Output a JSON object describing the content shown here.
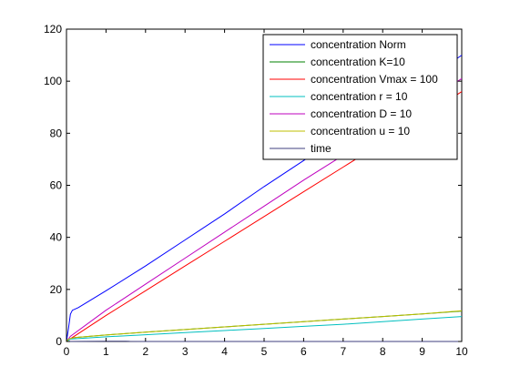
{
  "chart_data": {
    "type": "line",
    "title": "",
    "xlabel": "",
    "ylabel": "",
    "xlim": [
      0,
      10
    ],
    "ylim": [
      0,
      120
    ],
    "x_ticks": [
      0,
      1,
      2,
      3,
      4,
      5,
      6,
      7,
      8,
      9,
      10
    ],
    "y_ticks": [
      0,
      20,
      40,
      60,
      80,
      100,
      120
    ],
    "grid": false,
    "legend_position": "top-right",
    "series": [
      {
        "name": "concentration Norm",
        "color": "#0000ff",
        "x": [
          0,
          0.05,
          0.1,
          0.15,
          0.3,
          1,
          2,
          3,
          4,
          5,
          6,
          7,
          8,
          9,
          10
        ],
        "y": [
          0,
          5,
          10.5,
          12,
          13,
          19.5,
          29,
          39,
          49,
          59.5,
          69.5,
          79.5,
          89.5,
          99.5,
          110
        ]
      },
      {
        "name": "concentration K=10",
        "color": "#008000",
        "x": [
          0,
          0.05,
          0.2,
          1,
          2,
          3,
          4,
          5,
          6,
          7,
          8,
          9,
          10
        ],
        "y": [
          0,
          0.8,
          1.5,
          2.5,
          3.6,
          4.6,
          5.6,
          6.6,
          7.6,
          8.6,
          9.6,
          10.6,
          11.7
        ]
      },
      {
        "name": "concentration Vmax = 100",
        "color": "#ff0000",
        "x": [
          0,
          0.1,
          1,
          2,
          3,
          4,
          5,
          6,
          7,
          8,
          9,
          10
        ],
        "y": [
          0,
          1,
          10,
          19.5,
          29,
          38.5,
          48,
          57.5,
          67,
          76.5,
          86,
          96
        ]
      },
      {
        "name": "concentration r = 10",
        "color": "#00bfbf",
        "x": [
          0,
          0.1,
          1,
          2,
          3,
          4,
          5,
          6,
          7,
          8,
          9,
          10
        ],
        "y": [
          0,
          0.9,
          1.8,
          2.6,
          3.4,
          4.2,
          5,
          5.8,
          6.6,
          7.6,
          8.6,
          9.6
        ]
      },
      {
        "name": "concentration D = 10",
        "color": "#bf00bf",
        "x": [
          0,
          0.1,
          1,
          2,
          3,
          4,
          5,
          6,
          7,
          8,
          9,
          10
        ],
        "y": [
          0,
          2,
          12,
          22,
          32,
          42,
          52,
          62,
          71.5,
          81,
          91,
          101
        ]
      },
      {
        "name": "concentration u = 10",
        "color": "#bfbf00",
        "x": [
          0,
          0.05,
          0.2,
          1,
          2,
          3,
          4,
          5,
          6,
          7,
          8,
          9,
          10
        ],
        "y": [
          0,
          0.9,
          1.5,
          2.5,
          3.6,
          4.6,
          5.6,
          6.6,
          7.6,
          8.6,
          9.6,
          10.6,
          11.8
        ]
      },
      {
        "name": "time",
        "color": "#3f3f7f",
        "x": [
          0,
          0.5,
          1,
          1.5,
          1.6,
          2,
          3,
          4,
          5,
          6,
          7,
          8,
          9,
          10
        ],
        "y": [
          0,
          0.05,
          0.1,
          0.1,
          0.05,
          0,
          0,
          0,
          0,
          0,
          0,
          0,
          0,
          0
        ]
      }
    ]
  }
}
